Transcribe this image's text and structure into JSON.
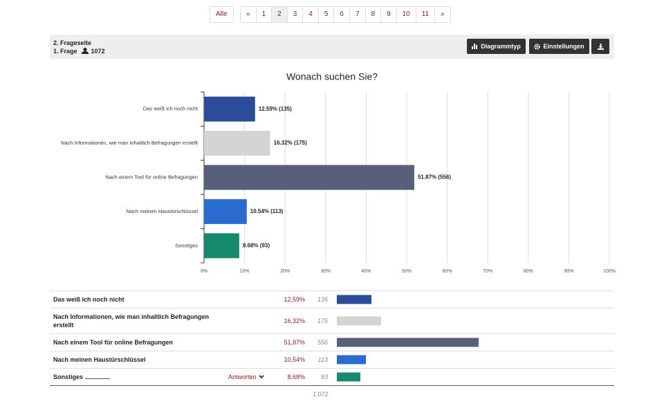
{
  "pagination": {
    "all": "Alle",
    "prev": "«",
    "pages": [
      1,
      2,
      3,
      4,
      5,
      6,
      7,
      8,
      9,
      10,
      11
    ],
    "current_page": 2,
    "next": "»"
  },
  "header": {
    "section": "2. Frageseite",
    "question": "1. Frage",
    "count": 1072,
    "buttons": [
      "Diagrammtyp",
      "Einstellungen"
    ]
  },
  "chart_data": {
    "type": "bar",
    "orientation": "horizontal",
    "title": "Wonach suchen Sie?",
    "categories": [
      "Das weiß ich noch nicht",
      "Nach Informationen, wie man inhaltlich Befragungen erstellt",
      "Nach einem Tool für online Befragungen",
      "Nach meinen Haustürschlüssel",
      "Sonstiges"
    ],
    "values": [
      12.59,
      16.32,
      51.87,
      10.54,
      8.68
    ],
    "value_labels": [
      "12.59% (135)",
      "16.32% (175)",
      "51.87% (556)",
      "10.54% (113)",
      "8.68% (93)"
    ],
    "colors": [
      "#2b4c9a",
      "#d4d4d4",
      "#585f78",
      "#2a6bd0",
      "#17896c"
    ],
    "xlim": [
      0,
      100
    ],
    "xticks": [
      {
        "value": 0,
        "label": "0%"
      },
      {
        "value": 10,
        "label": "10%"
      },
      {
        "value": 20,
        "label": "20%"
      },
      {
        "value": 30,
        "label": "30%"
      },
      {
        "value": 40,
        "label": "40%"
      },
      {
        "value": 50,
        "label": "50%"
      },
      {
        "value": 60,
        "label": "60%"
      },
      {
        "value": 70,
        "label": "70%"
      },
      {
        "value": 80,
        "label": "80%"
      },
      {
        "value": 90,
        "label": "90%"
      },
      {
        "value": 100,
        "label": "100%"
      }
    ],
    "grid": true
  },
  "table": {
    "rows": [
      {
        "label": "Das weiß ich noch nicht",
        "percent": "12,59%",
        "count": 135
      },
      {
        "label": "Nach Informationen, wie man inhaltlich Befragungen erstellt",
        "percent": "16,32%",
        "count": 175
      },
      {
        "label": "Nach einem Tool für online Befragungen",
        "percent": "51,87%",
        "count": 556
      },
      {
        "label": "Nach meinen Haustürschlüssel",
        "percent": "10,54%",
        "count": 113
      },
      {
        "label": "Sonstiges",
        "percent": "8,68%",
        "count": 93
      }
    ],
    "answers_link": "Antworten",
    "total": {
      "value": 1072,
      "label": "1.072"
    }
  }
}
